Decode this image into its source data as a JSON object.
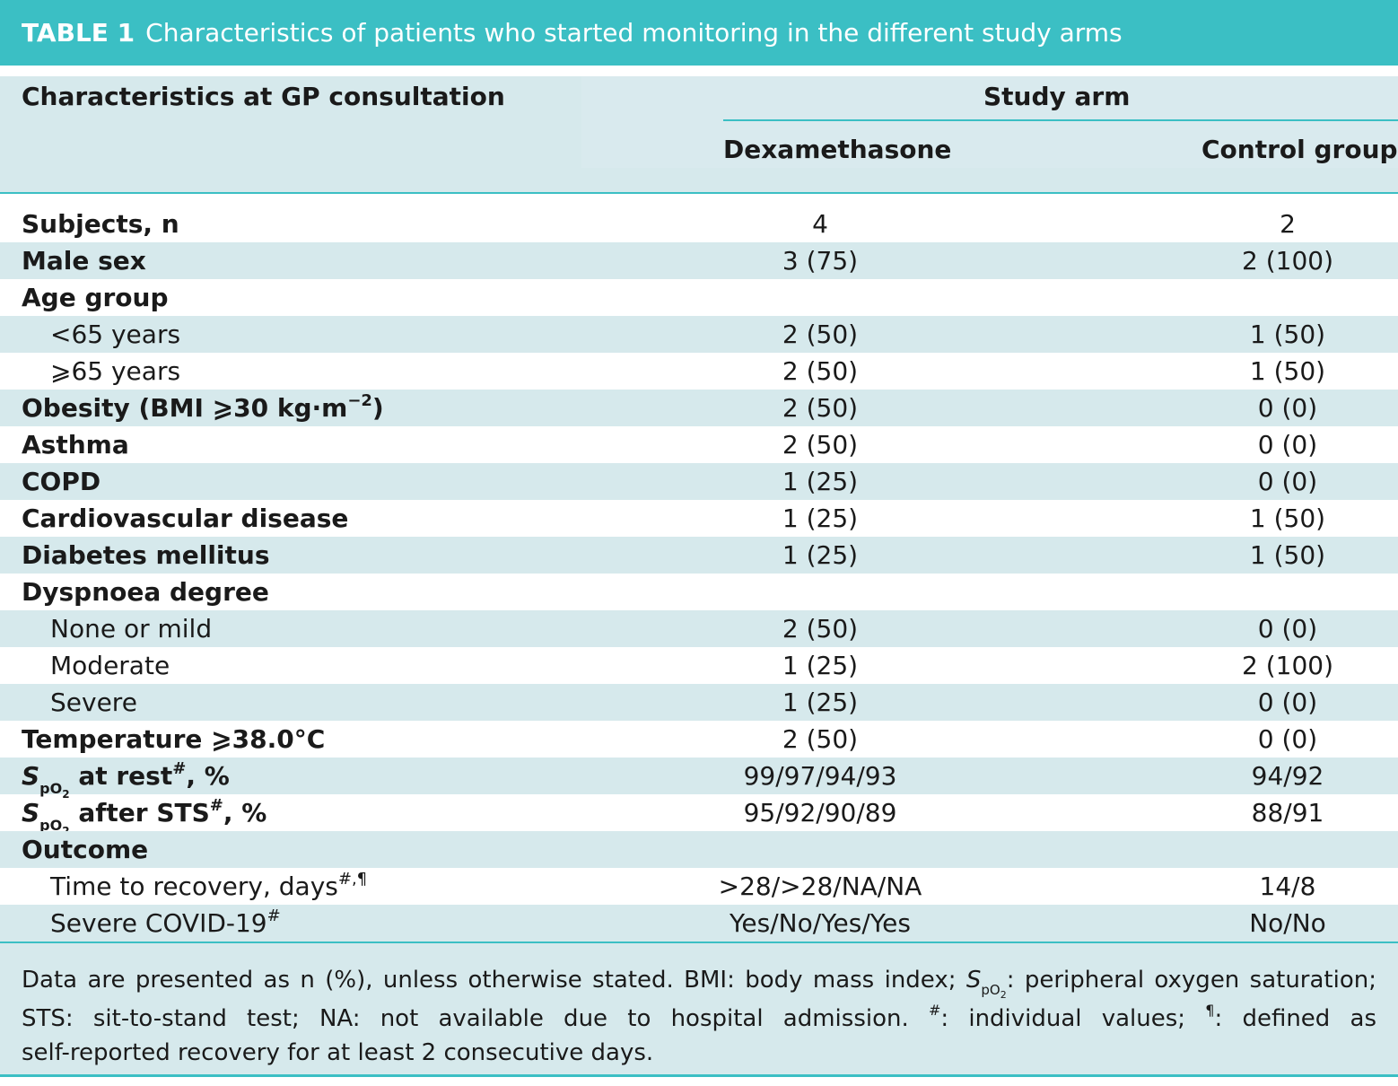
{
  "title": {
    "label": "TABLE 1",
    "text": "Characteristics of patients who started monitoring in the different study arms"
  },
  "header": {
    "left": "Characteristics at GP consultation",
    "group": "Study arm",
    "col1": "Dexamethasone",
    "col2": "Control group"
  },
  "rows": [
    {
      "label": "Subjects, n",
      "v1": "4",
      "v2": "2"
    },
    {
      "label": "Male sex",
      "v1": "3 (75)",
      "v2": "2 (100)"
    },
    {
      "label": "Age group",
      "v1": "",
      "v2": ""
    },
    {
      "label": "<65 years",
      "v1": "2 (50)",
      "v2": "1 (50)"
    },
    {
      "label": "⩾65 years",
      "v1": "2 (50)",
      "v2": "1 (50)"
    },
    {
      "label": "Obesity (BMI ⩾30 kg·m",
      "sup": "−2",
      "label_end": ")",
      "v1": "2 (50)",
      "v2": "0 (0)"
    },
    {
      "label": "Asthma",
      "v1": "2 (50)",
      "v2": "0 (0)"
    },
    {
      "label": "COPD",
      "v1": "1 (25)",
      "v2": "0 (0)"
    },
    {
      "label": "Cardiovascular disease",
      "v1": "1 (25)",
      "v2": "1 (50)"
    },
    {
      "label": "Diabetes mellitus",
      "v1": "1 (25)",
      "v2": "1 (50)"
    },
    {
      "label": "Dyspnoea degree",
      "v1": "",
      "v2": ""
    },
    {
      "label": "None or mild",
      "v1": "2 (50)",
      "v2": "0 (0)"
    },
    {
      "label": "Moderate",
      "v1": "1 (25)",
      "v2": "2 (100)"
    },
    {
      "label": "Severe",
      "v1": "1 (25)",
      "v2": "0 (0)"
    },
    {
      "label": "Temperature ⩾38.0°C",
      "v1": "2 (50)",
      "v2": "0 (0)"
    },
    {
      "label": " at rest",
      "sup": "#",
      "label_end": ", %",
      "v1": "99/97/94/93",
      "v2": "94/92"
    },
    {
      "label": " after STS",
      "sup": "#",
      "label_end": ", %",
      "v1": "95/92/90/89",
      "v2": "88/91"
    },
    {
      "label": "Outcome",
      "v1": "",
      "v2": ""
    },
    {
      "label": "Time to recovery, days",
      "sup": "#,¶",
      "v1": ">28/>28/NA/NA",
      "v2": "14/8"
    },
    {
      "label": "Severe COVID-19",
      "sup": "#",
      "v1": "Yes/No/Yes/Yes",
      "v2": "No/No"
    }
  ],
  "spo2": {
    "s": "S",
    "p": "pO",
    "two": "2"
  },
  "footnote": {
    "line1a": "Data are presented as n (%), unless otherwise stated. BMI: body mass index; ",
    "line1b": ": peripheral oxygen saturation;",
    "line2a": "STS: sit-to-stand test; NA: not available due to hospital admission. ",
    "line2_sup1": "#",
    "line2b": ": individual values; ",
    "line2_sup2": "¶",
    "line2c": ": defined as",
    "line3": "self-reported recovery for at least 2 consecutive days."
  }
}
